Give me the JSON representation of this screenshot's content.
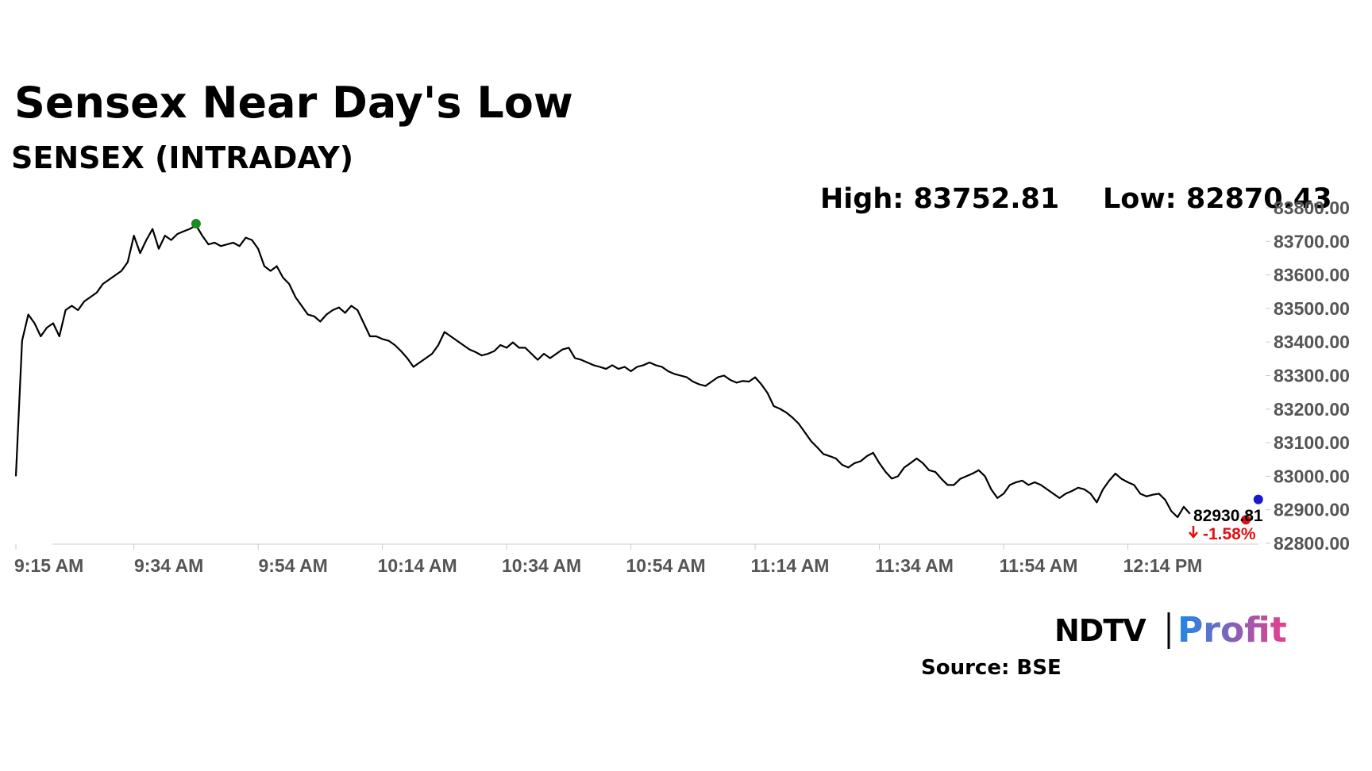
{
  "chart_data": {
    "type": "line",
    "title": "Sensex Near Day's Low",
    "subtitle": "SENSEX (INTRADAY)",
    "high_label": "High: 83752.81",
    "low_label": "Low: 82870.43",
    "change_label": "-1.58%",
    "source": "Source: BSE",
    "logo": {
      "left": "NDTV",
      "right": "Profit"
    },
    "color": "#000000",
    "x": [
      "9:15 AM",
      "9:16 AM",
      "9:17 AM",
      "9:18 AM",
      "9:19 AM",
      "9:20 AM",
      "9:21 AM",
      "9:22 AM",
      "9:23 AM",
      "9:24 AM",
      "9:25 AM",
      "9:26 AM",
      "9:27 AM",
      "9:28 AM",
      "9:29 AM",
      "9:30 AM",
      "9:31 AM",
      "9:32 AM",
      "9:33 AM",
      "9:34 AM",
      "9:35 AM",
      "9:36 AM",
      "9:37 AM",
      "9:38 AM",
      "9:39 AM",
      "9:40 AM",
      "9:41 AM",
      "9:42 AM",
      "9:43 AM",
      "9:44 AM",
      "9:45 AM",
      "9:46 AM",
      "9:47 AM",
      "9:48 AM",
      "9:49 AM",
      "9:50 AM",
      "9:51 AM",
      "9:52 AM",
      "9:53 AM",
      "9:54 AM",
      "9:55 AM",
      "9:56 AM",
      "9:57 AM",
      "9:58 AM",
      "9:59 AM",
      "10:00 AM",
      "10:01 AM",
      "10:02 AM",
      "10:03 AM",
      "10:04 AM",
      "10:05 AM",
      "10:06 AM",
      "10:07 AM",
      "10:08 AM",
      "10:09 AM",
      "10:10 AM",
      "10:11 AM",
      "10:12 AM",
      "10:13 AM",
      "10:14 AM",
      "10:15 AM",
      "10:16 AM",
      "10:17 AM",
      "10:18 AM",
      "10:19 AM",
      "10:20 AM",
      "10:21 AM",
      "10:22 AM",
      "10:23 AM",
      "10:24 AM",
      "10:25 AM",
      "10:26 AM",
      "10:27 AM",
      "10:28 AM",
      "10:29 AM",
      "10:30 AM",
      "10:31 AM",
      "10:32 AM",
      "10:33 AM",
      "10:34 AM",
      "10:35 AM",
      "10:36 AM",
      "10:37 AM",
      "10:38 AM",
      "10:39 AM",
      "10:40 AM",
      "10:41 AM",
      "10:42 AM",
      "10:43 AM",
      "10:44 AM",
      "10:45 AM",
      "10:46 AM",
      "10:47 AM",
      "10:48 AM",
      "10:49 AM",
      "10:50 AM",
      "10:51 AM",
      "10:52 AM",
      "10:53 AM",
      "10:54 AM",
      "10:55 AM",
      "10:56 AM",
      "10:57 AM",
      "10:58 AM",
      "10:59 AM",
      "11:00 AM",
      "11:01 AM",
      "11:02 AM",
      "11:03 AM",
      "11:04 AM",
      "11:05 AM",
      "11:06 AM",
      "11:07 AM",
      "11:08 AM",
      "11:09 AM",
      "11:10 AM",
      "11:11 AM",
      "11:12 AM",
      "11:13 AM",
      "11:14 AM",
      "11:15 AM",
      "11:16 AM",
      "11:17 AM",
      "11:18 AM",
      "11:19 AM",
      "11:20 AM",
      "11:21 AM",
      "11:22 AM",
      "11:23 AM",
      "11:24 AM",
      "11:25 AM",
      "11:26 AM",
      "11:27 AM",
      "11:28 AM",
      "11:29 AM",
      "11:30 AM",
      "11:31 AM",
      "11:32 AM",
      "11:33 AM",
      "11:34 AM",
      "11:35 AM",
      "11:36 AM",
      "11:37 AM",
      "11:38 AM",
      "11:39 AM",
      "11:40 AM",
      "11:41 AM",
      "11:42 AM",
      "11:43 AM",
      "11:44 AM",
      "11:45 AM",
      "11:46 AM",
      "11:47 AM",
      "11:48 AM",
      "11:49 AM",
      "11:50 AM",
      "11:51 AM",
      "11:52 AM",
      "11:53 AM",
      "11:54 AM",
      "11:55 AM",
      "11:56 AM",
      "11:57 AM",
      "11:58 AM",
      "11:59 AM",
      "12:00 PM",
      "12:01 PM",
      "12:02 PM",
      "12:03 PM",
      "12:04 PM",
      "12:05 PM",
      "12:06 PM",
      "12:07 PM",
      "12:08 PM",
      "12:09 PM",
      "12:10 PM",
      "12:11 PM",
      "12:12 PM",
      "12:13 PM",
      "12:14 PM",
      "12:15 PM",
      "12:16 PM",
      "12:17 PM",
      "12:18 PM",
      "12:19 PM",
      "12:20 PM",
      "12:21 PM",
      "12:22 PM",
      "12:23 PM",
      "12:24 PM",
      "12:25 PM",
      "12:26 PM",
      "12:27 PM",
      "12:28 PM",
      "12:29 PM",
      "12:30 PM",
      "12:31 PM",
      "12:32 PM",
      "12:33 PM",
      "12:34 PM",
      "12:35 PM"
    ],
    "values": [
      83000,
      83404,
      83482,
      83456,
      83417,
      83443,
      83456,
      83417,
      83495,
      83508,
      83495,
      83521,
      83534,
      83547,
      83573,
      83586,
      83599,
      83612,
      83638,
      83717,
      83665,
      83704,
      83737,
      83678,
      83717,
      83704,
      83722,
      83730,
      83737,
      83748,
      83717,
      83691,
      83696,
      83686,
      83691,
      83696,
      83686,
      83711,
      83704,
      83678,
      83626,
      83612,
      83626,
      83592,
      83573,
      83534,
      83508,
      83482,
      83477,
      83461,
      83482,
      83495,
      83503,
      83487,
      83508,
      83495,
      83456,
      83417,
      83417,
      83409,
      83404,
      83391,
      83373,
      83352,
      83326,
      83339,
      83352,
      83365,
      83391,
      83430,
      83417,
      83404,
      83391,
      83378,
      83370,
      83360,
      83365,
      83373,
      83391,
      83383,
      83399,
      83383,
      83383,
      83365,
      83347,
      83365,
      83352,
      83365,
      83378,
      83383,
      83352,
      83347,
      83339,
      83331,
      83326,
      83320,
      83331,
      83320,
      83326,
      83313,
      83326,
      83331,
      83339,
      83331,
      83326,
      83313,
      83305,
      83300,
      83295,
      83282,
      83274,
      83269,
      83282,
      83295,
      83300,
      83287,
      83279,
      83284,
      83282,
      83295,
      83274,
      83248,
      83209,
      83201,
      83190,
      83175,
      83157,
      83131,
      83105,
      83086,
      83066,
      83060,
      83053,
      83034,
      83026,
      83039,
      83045,
      83060,
      83070,
      83039,
      83013,
      82993,
      83000,
      83026,
      83039,
      83053,
      83039,
      83018,
      83013,
      82992,
      82974,
      82974,
      82992,
      83000,
      83008,
      83018,
      83000,
      82961,
      82935,
      82948,
      82974,
      82982,
      82987,
      82974,
      82982,
      82974,
      82961,
      82948,
      82935,
      82948,
      82956,
      82966,
      82961,
      82948,
      82922,
      82961,
      82987,
      83008,
      82992,
      82982,
      82974,
      82948,
      82940,
      82945,
      82948,
      82930,
      82896,
      82878,
      82909,
      82888,
      null,
      null,
      null,
      null,
      null,
      null,
      null,
      null,
      null,
      null,
      null
    ],
    "markers": [
      {
        "x": "9:44 AM",
        "value": 83752.81,
        "color": "#1a8a1a"
      },
      {
        "x": "12:33 PM",
        "value": 82870.43,
        "color": "#e01010"
      },
      {
        "x": "12:35 PM",
        "value": 82930.81,
        "color": "#1a1acc"
      }
    ],
    "xticks": [
      "9:15 AM",
      "9:34 AM",
      "9:54 AM",
      "10:14 AM",
      "10:34 AM",
      "10:54 AM",
      "11:14 AM",
      "11:34 AM",
      "11:54 AM",
      "12:14 PM"
    ],
    "ylim": [
      82800,
      83800
    ],
    "yticks": [
      {
        "value": 82800,
        "label": "82800.00"
      },
      {
        "value": 82900,
        "label": "82900.00"
      },
      {
        "value": 83000,
        "label": "83000.00"
      },
      {
        "value": 83100,
        "label": "83100.00"
      },
      {
        "value": 83200,
        "label": "83200.00"
      },
      {
        "value": 83300,
        "label": "83300.00"
      },
      {
        "value": 83400,
        "label": "83400.00"
      },
      {
        "value": 83500,
        "label": "83500.00"
      },
      {
        "value": 83600,
        "label": "83600.00"
      },
      {
        "value": 83700,
        "label": "83700.00"
      },
      {
        "value": 83800,
        "label": "83800.00"
      }
    ]
  }
}
